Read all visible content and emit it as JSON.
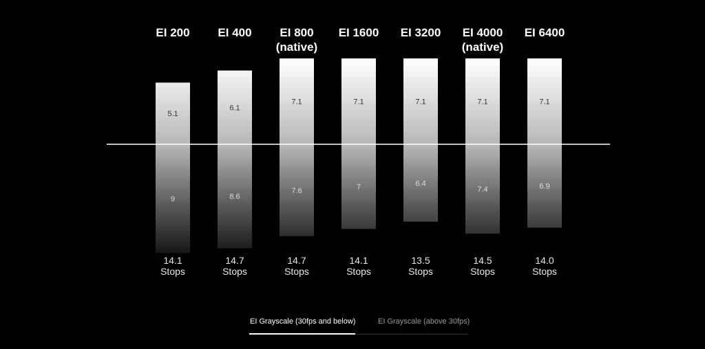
{
  "chart_data": {
    "type": "bar",
    "title": "",
    "categories": [
      "EI 200",
      "EI 400",
      "EI 800",
      "EI 1600",
      "EI 3200",
      "EI 4000",
      "EI 6400"
    ],
    "subtitles": [
      "",
      "",
      "(native)",
      "",
      "",
      "(native)",
      ""
    ],
    "series": [
      {
        "name": "",
        "position": "above-midline",
        "values": [
          5.1,
          6.1,
          7.1,
          7.1,
          7.1,
          7.1,
          7.1
        ]
      },
      {
        "name": "",
        "position": "below-midline",
        "values": [
          9,
          8.6,
          7.6,
          7,
          6.4,
          7.4,
          6.9
        ]
      }
    ],
    "totals": [
      "14.1",
      "14.7",
      "14.7",
      "14.1",
      "13.5",
      "14.5",
      "14.0"
    ],
    "total_unit": "Stops",
    "xlabel": "",
    "ylabel": "",
    "grid": false,
    "legend": "none",
    "colors": {
      "background": "#000000",
      "bar_top": "#ffffff",
      "bar_bottom": "#1a1a1a",
      "midline": "#ffffff"
    }
  },
  "tabs": [
    {
      "label": "EI Grayscale (30fps and below)",
      "active": true
    },
    {
      "label": "EI Grayscale (above 30fps)",
      "active": false
    }
  ]
}
